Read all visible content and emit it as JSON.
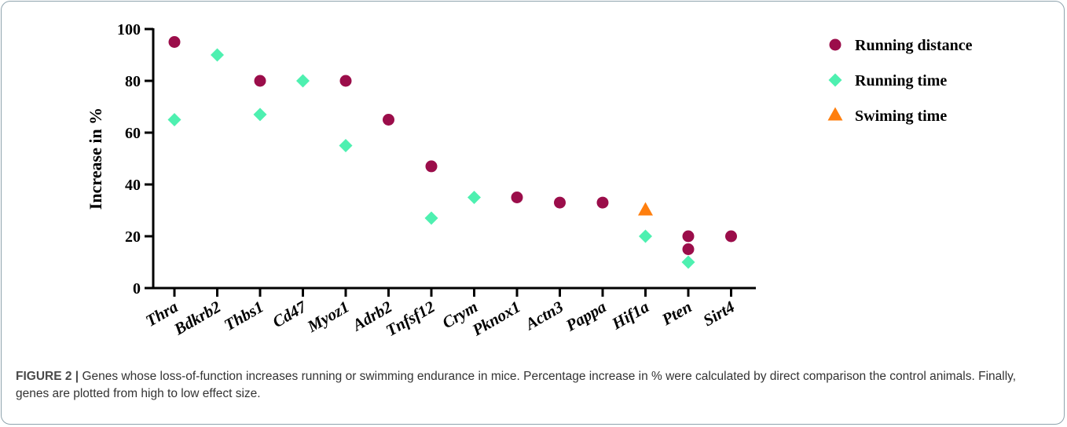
{
  "chart_data": {
    "type": "scatter",
    "ylabel": "Increase in %",
    "xlabel": "",
    "ylim": [
      0,
      100
    ],
    "yticks": [
      0,
      20,
      40,
      60,
      80,
      100
    ],
    "categories": [
      "Thra",
      "Bdkrb2",
      "Thbs1",
      "Cd47",
      "Myoz1",
      "Adrb2",
      "Tnfsf12",
      "Crym",
      "Pknox1",
      "Actn3",
      "Pappa",
      "Hif1a",
      "Pten",
      "Sirt4"
    ],
    "legend_position": "top-right",
    "grid": false,
    "series": [
      {
        "name": "Running distance",
        "marker": "circle",
        "color": "#9b0d4a",
        "points": [
          {
            "x": "Thra",
            "y": 95
          },
          {
            "x": "Thbs1",
            "y": 80
          },
          {
            "x": "Myoz1",
            "y": 80
          },
          {
            "x": "Adrb2",
            "y": 65
          },
          {
            "x": "Tnfsf12",
            "y": 47
          },
          {
            "x": "Pknox1",
            "y": 35
          },
          {
            "x": "Actn3",
            "y": 33
          },
          {
            "x": "Pappa",
            "y": 33
          },
          {
            "x": "Pten",
            "y": 20
          },
          {
            "x": "Pten",
            "y": 15
          },
          {
            "x": "Sirt4",
            "y": 20
          }
        ]
      },
      {
        "name": "Running time",
        "marker": "diamond",
        "color": "#4ef0b0",
        "points": [
          {
            "x": "Thra",
            "y": 65
          },
          {
            "x": "Bdkrb2",
            "y": 90
          },
          {
            "x": "Thbs1",
            "y": 67
          },
          {
            "x": "Cd47",
            "y": 80
          },
          {
            "x": "Myoz1",
            "y": 55
          },
          {
            "x": "Tnfsf12",
            "y": 27
          },
          {
            "x": "Crym",
            "y": 35
          },
          {
            "x": "Hif1a",
            "y": 20
          },
          {
            "x": "Pten",
            "y": 10
          }
        ]
      },
      {
        "name": "Swiming time",
        "marker": "triangle",
        "color": "#ff7f0e",
        "points": [
          {
            "x": "Hif1a",
            "y": 30
          }
        ]
      }
    ]
  },
  "caption": {
    "lead": "FIGURE 2 |",
    "text": " Genes whose loss-of-function increases running or swimming endurance in mice. Percentage increase in % were calculated by direct comparison the control animals. Finally, genes are plotted from high to low effect size."
  }
}
